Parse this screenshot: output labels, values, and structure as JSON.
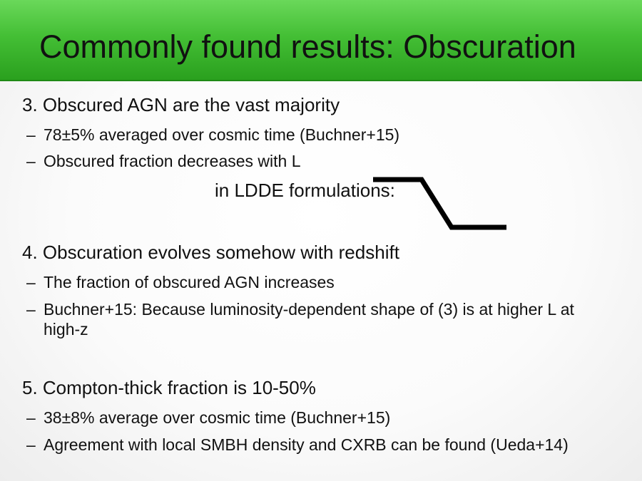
{
  "slide": {
    "title": "Commonly found results: Obscuration",
    "sections": [
      {
        "heading": "3. Obscured AGN are the vast majority",
        "bullets": [
          "78±5% averaged over cosmic time (Buchner+15)",
          "Obscured fraction decreases with L"
        ],
        "note": "in LDDE formulations:"
      },
      {
        "heading": "4. Obscuration evolves somehow with redshift",
        "bullets": [
          "The fraction of obscured AGN increases",
          "Buchner+15: Because luminosity-dependent shape of (3) is at higher L at high-z"
        ]
      },
      {
        "heading": "5. Compton-thick fraction is 10-50%",
        "bullets": [
          "38±8% average over cosmic time (Buchner+15)",
          "Agreement with local SMBH density and CXRB can be found (Ueda+14)"
        ]
      }
    ],
    "bullet_marker": "–",
    "colors": {
      "title_bar": "#44bf35",
      "text": "#111111"
    },
    "icons": {
      "step_shape": "step-down-line-icon"
    }
  }
}
